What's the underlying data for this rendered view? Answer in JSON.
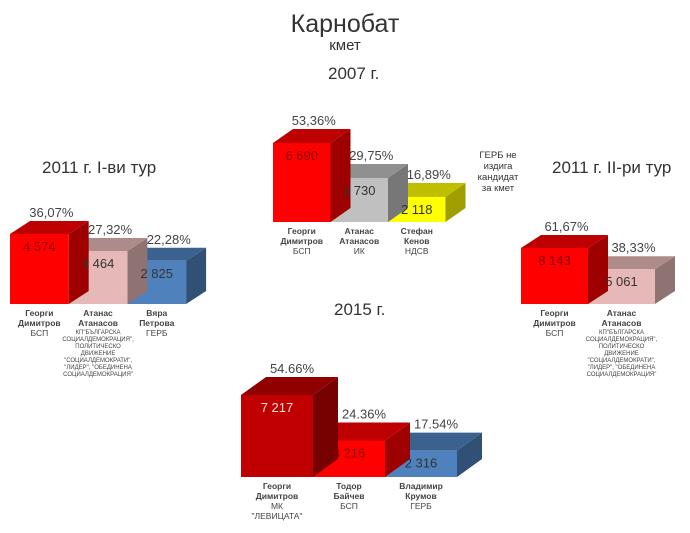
{
  "header": {
    "title": "Карнобат",
    "subtitle": "кмет"
  },
  "note_2007": [
    "ГЕРБ не",
    "издига",
    "кандидат",
    "за кмет"
  ],
  "chart_data": [
    {
      "type": "bar",
      "title": "2007 г.",
      "categories": [
        "Георги Димитров",
        "Атанас Атанасов",
        "Стефан Кенов"
      ],
      "parties": [
        [
          "БСП"
        ],
        [
          "ИК"
        ],
        [
          "НДСВ"
        ]
      ],
      "values": [
        6690,
        3730,
        2118
      ],
      "value_labels": [
        "6 690",
        "3 730",
        "2 118"
      ],
      "percent_labels": [
        "53,36%",
        "29,75%",
        "16,89%"
      ],
      "percents": [
        53.36,
        29.75,
        16.89
      ],
      "colors": [
        "#ff0000",
        "#c0c0c0",
        "#ffff00"
      ],
      "names": [
        [
          "Георги",
          "Димитров"
        ],
        [
          "Атанас",
          "Атанасов"
        ],
        [
          "Стефан",
          "Кенов"
        ]
      ]
    },
    {
      "type": "bar",
      "title": "2011 г. I-ви тур",
      "categories": [
        "Георги Димитров",
        "Атанас Атанасов",
        "Вяра Петрова"
      ],
      "parties": [
        [
          "БСП"
        ],
        [
          "КП\"БЪЛГАРСКА",
          "СОЦИАЛДЕМОКРАЦИЯ\",",
          "ПОЛИТИЧЕСКО",
          "ДВИЖЕНИЕ",
          "\"СОЦИАЛДЕМОКРАТИ\",",
          "\"ЛИДЕР\", \"ОБЕДИНЕНА",
          "СОЦИАЛДЕМОКРАЦИЯ\""
        ],
        [
          "ГЕРБ"
        ]
      ],
      "values": [
        4574,
        3464,
        2825
      ],
      "value_labels": [
        "4 574",
        "3 464",
        "2 825"
      ],
      "percent_labels": [
        "36,07%",
        "27,32%",
        "22,28%"
      ],
      "percents": [
        36.07,
        27.32,
        22.28
      ],
      "colors": [
        "#ff0000",
        "#e6b9b8",
        "#4f81bd"
      ],
      "names": [
        [
          "Георги",
          "Димитров"
        ],
        [
          "Атанас",
          "Атанасов"
        ],
        [
          "Вяра",
          "Петрова"
        ]
      ]
    },
    {
      "type": "bar",
      "title": "2011 г. II-ри тур",
      "categories": [
        "Георги Димитров",
        "Атанас Атанасов"
      ],
      "parties": [
        [
          "БСП"
        ],
        [
          "КП\"БЪЛГАРСКА",
          "СОЦИАЛДЕМОКРАЦИЯ\",",
          "ПОЛИТИЧЕСКО",
          "ДВИЖЕНИЕ",
          "\"СОЦИАЛДЕМОКРАТИ\",",
          "\"ЛИДЕР\", \"ОБЕДИНЕНА",
          "СОЦИАЛДЕМОКРАЦИЯ\""
        ]
      ],
      "values": [
        8143,
        5061
      ],
      "value_labels": [
        "8 143",
        "5 061"
      ],
      "percent_labels": [
        "61,67%",
        "38,33%"
      ],
      "percents": [
        61.67,
        38.33
      ],
      "colors": [
        "#ff0000",
        "#e6b9b8"
      ],
      "names": [
        [
          "Георги",
          "Димитров"
        ],
        [
          "Атанас",
          "Атанасов"
        ]
      ]
    },
    {
      "type": "bar",
      "title": "2015 г.",
      "categories": [
        "Георги Димитров",
        "Тодор Байчев",
        "Владимир Крумов"
      ],
      "parties": [
        [
          "МК",
          "\"ЛЕВИЦАТА\""
        ],
        [
          "БСП"
        ],
        [
          "ГЕРБ"
        ]
      ],
      "values": [
        7217,
        3216,
        2316
      ],
      "value_labels": [
        "7 217",
        "3 216",
        "2 316"
      ],
      "percent_labels": [
        "54.66%",
        "24.36%",
        "17.54%"
      ],
      "percents": [
        54.66,
        24.36,
        17.54
      ],
      "colors": [
        "#c00000",
        "#ff0000",
        "#4f81bd"
      ],
      "names": [
        [
          "Георги",
          "Димитров"
        ],
        [
          "Тодор",
          "Байчев"
        ],
        [
          "Владимир",
          "Крумов"
        ]
      ]
    }
  ]
}
